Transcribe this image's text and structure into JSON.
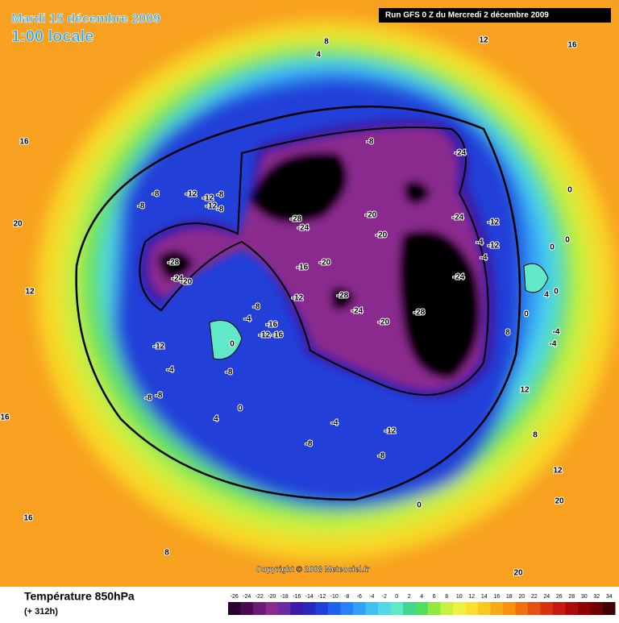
{
  "header": {
    "date": "Mardi 15 décembre 2009",
    "time": "1:00 locale",
    "run": "Run GFS 0 Z du Mercredi 2 décembre 2009"
  },
  "map": {
    "copyright": "Copyright © 2008 Meteociel.fr",
    "contour_labels": [
      8,
      4,
      12,
      16,
      16,
      20,
      -8,
      -12,
      -12,
      -12,
      -8,
      -8,
      -8,
      -28,
      -24,
      -20,
      -28,
      -24,
      -8,
      -20,
      -20,
      -24,
      -24,
      -12,
      -4,
      -12,
      -4,
      0,
      0,
      0,
      -16,
      -20,
      -12,
      -28,
      -24,
      -20,
      -28,
      -24,
      -8,
      -16,
      -12,
      -16,
      -4,
      0,
      -8,
      -12,
      -4,
      -8,
      -8,
      4,
      0,
      -4,
      -12,
      -8,
      -8,
      0,
      12,
      16,
      16,
      8,
      12,
      8,
      12,
      20,
      20,
      0,
      0,
      -4,
      -4,
      8,
      4
    ]
  },
  "footer": {
    "variable": "Température 850hPa",
    "lead": "(+ 312h)",
    "scale_ticks": [
      -26,
      -24,
      -22,
      -20,
      -18,
      -16,
      -14,
      -12,
      -10,
      -8,
      -6,
      -4,
      -2,
      0,
      2,
      4,
      6,
      8,
      10,
      12,
      14,
      16,
      18,
      20,
      22,
      24,
      26,
      28,
      30,
      32,
      34
    ],
    "scale_colors": [
      "#2a0030",
      "#4a0a52",
      "#6a1a72",
      "#8a2a8e",
      "#6a2aa0",
      "#3a1aa8",
      "#2828c0",
      "#2040d8",
      "#2060f0",
      "#2a80f8",
      "#30a0f8",
      "#40c0f0",
      "#50d8e8",
      "#60e8c8",
      "#40d890",
      "#50e060",
      "#90e840",
      "#c8f040",
      "#f0f040",
      "#f8e030",
      "#f8c820",
      "#f8a818",
      "#f89010",
      "#f07010",
      "#e85010",
      "#d83010",
      "#c81810",
      "#b00808",
      "#900000",
      "#700000",
      "#400000"
    ]
  }
}
